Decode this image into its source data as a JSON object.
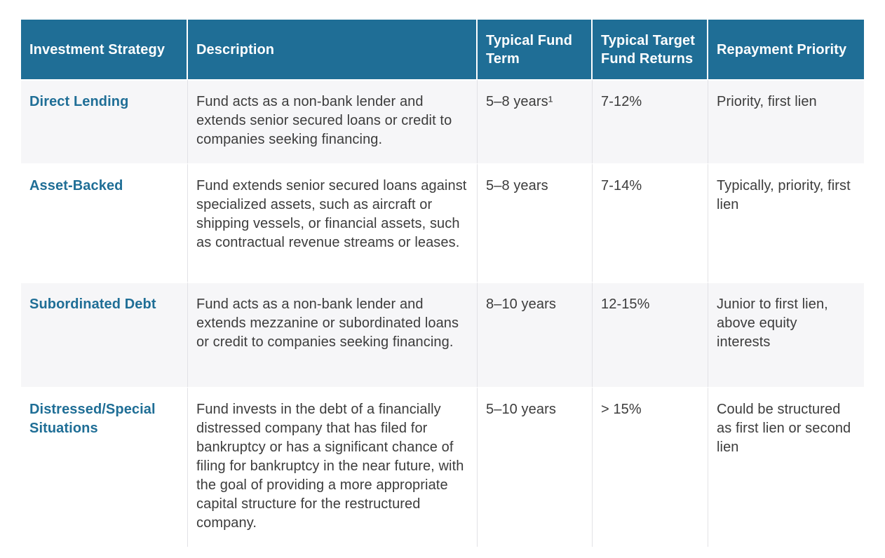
{
  "colors": {
    "header_bg": "#1F6E96",
    "strategy_text": "#1F6E96",
    "alt_row_bg": "#F6F6F8",
    "body_text": "#3C3C3C",
    "divider": "#E2E2E6"
  },
  "table": {
    "columns": [
      "Investment Strategy",
      "Description",
      "Typical Fund Term",
      "Typical Target Fund Returns",
      "Repayment Priority"
    ],
    "rows": [
      {
        "strategy": "Direct Lending",
        "description": "Fund acts as a non-bank lender and extends senior secured loans or credit to companies seeking financing.",
        "term": "5–8 years¹",
        "returns": "7-12%",
        "priority": "Priority, first lien"
      },
      {
        "strategy": "Asset-Backed",
        "description": "Fund extends senior secured loans against specialized assets, such as aircraft or shipping vessels, or financial assets, such as contractual revenue streams or leases.",
        "term": "5–8 years",
        "returns": "7-14%",
        "priority": "Typically, priority, first lien"
      },
      {
        "strategy": "Subordinated Debt",
        "description": "Fund acts as a non-bank lender and extends mezzanine or subordinated loans or credit to companies seeking financing.",
        "term": "8–10 years",
        "returns": "12-15%",
        "priority": "Junior to first lien, above equity interests"
      },
      {
        "strategy": "Distressed/Special Situations",
        "description": "Fund invests in the debt of a financially distressed company that has filed for bankruptcy or has a significant chance of filing for bankruptcy in the near future, with the goal of providing a more appropriate capital structure for the restructured company.",
        "term": "5–10 years",
        "returns": "> 15%",
        "priority": "Could be structured as first lien or second lien"
      }
    ]
  }
}
